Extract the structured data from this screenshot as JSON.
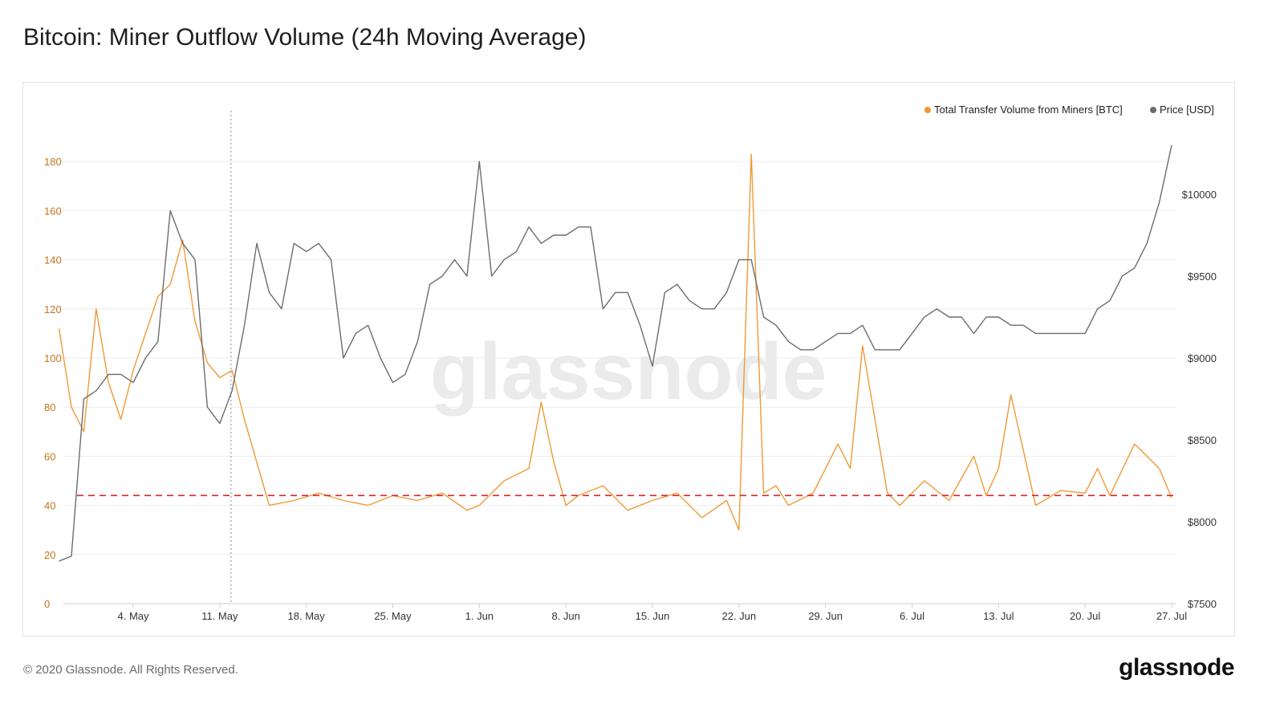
{
  "title": "Bitcoin: Miner Outflow Volume (24h Moving Average)",
  "footer": {
    "copyright": "© 2020 Glassnode. All Rights Reserved.",
    "brand": "glassnode"
  },
  "watermark": "glassnode",
  "colors": {
    "volume": "#f09a37",
    "price": "#6d6d6d",
    "threshold": "#d62626",
    "left_axis": "#c4741a",
    "right_axis": "#333333",
    "grid": "#ececec"
  },
  "chart_data": {
    "type": "line",
    "title": "Bitcoin: Miner Outflow Volume (24h Moving Average)",
    "legend": {
      "placement": "top-right",
      "entries": [
        "Total Transfer Volume from Miners [BTC]",
        "Price [USD]"
      ]
    },
    "x_ticks": [
      "4. May",
      "11. May",
      "18. May",
      "25. May",
      "1. Jun",
      "8. Jun",
      "15. Jun",
      "22. Jun",
      "29. Jun",
      "6. Jul",
      "13. Jul",
      "20. Jul",
      "27. Jul"
    ],
    "y_left": {
      "ticks": [
        "0",
        "20",
        "40",
        "60",
        "80",
        "100",
        "120",
        "140",
        "160",
        "180"
      ],
      "ylim": [
        0,
        200
      ]
    },
    "y_right": {
      "ticks": [
        "$7500",
        "$8000",
        "$8500",
        "$9000",
        "$9500",
        "$10000"
      ],
      "ylim": [
        7500,
        10500
      ]
    },
    "grid": true,
    "threshold_line": {
      "axis": "left",
      "value": 44,
      "style": "dashed"
    },
    "marker_line": {
      "x": "11. May",
      "style": "dotted"
    },
    "series": [
      {
        "name": "Total Transfer Volume from Miners [BTC]",
        "axis": "left",
        "x": [
          "2020-04-28",
          "2020-04-29",
          "2020-04-30",
          "2020-05-01",
          "2020-05-02",
          "2020-05-03",
          "2020-05-04",
          "2020-05-05",
          "2020-05-06",
          "2020-05-07",
          "2020-05-08",
          "2020-05-09",
          "2020-05-10",
          "2020-05-11",
          "2020-05-12",
          "2020-05-13",
          "2020-05-15",
          "2020-05-17",
          "2020-05-19",
          "2020-05-21",
          "2020-05-23",
          "2020-05-25",
          "2020-05-27",
          "2020-05-29",
          "2020-05-31",
          "2020-06-01",
          "2020-06-03",
          "2020-06-05",
          "2020-06-06",
          "2020-06-07",
          "2020-06-08",
          "2020-06-09",
          "2020-06-11",
          "2020-06-13",
          "2020-06-15",
          "2020-06-17",
          "2020-06-19",
          "2020-06-21",
          "2020-06-22",
          "2020-06-23",
          "2020-06-24",
          "2020-06-25",
          "2020-06-26",
          "2020-06-28",
          "2020-06-30",
          "2020-07-01",
          "2020-07-02",
          "2020-07-03",
          "2020-07-04",
          "2020-07-05",
          "2020-07-07",
          "2020-07-09",
          "2020-07-11",
          "2020-07-12",
          "2020-07-13",
          "2020-07-14",
          "2020-07-16",
          "2020-07-18",
          "2020-07-20",
          "2020-07-21",
          "2020-07-22",
          "2020-07-24",
          "2020-07-26",
          "2020-07-27"
        ],
        "values": [
          112,
          80,
          70,
          120,
          90,
          75,
          95,
          110,
          125,
          130,
          148,
          115,
          98,
          92,
          95,
          75,
          40,
          42,
          45,
          42,
          40,
          44,
          42,
          45,
          38,
          40,
          50,
          55,
          82,
          58,
          40,
          44,
          48,
          38,
          42,
          45,
          35,
          42,
          30,
          183,
          45,
          48,
          40,
          45,
          65,
          55,
          105,
          75,
          45,
          40,
          50,
          42,
          60,
          44,
          55,
          85,
          40,
          46,
          45,
          55,
          44,
          65,
          55,
          43
        ]
      },
      {
        "name": "Price [USD]",
        "axis": "right",
        "x": [
          "2020-04-28",
          "2020-04-29",
          "2020-04-30",
          "2020-05-01",
          "2020-05-02",
          "2020-05-03",
          "2020-05-04",
          "2020-05-05",
          "2020-05-06",
          "2020-05-07",
          "2020-05-08",
          "2020-05-09",
          "2020-05-10",
          "2020-05-11",
          "2020-05-12",
          "2020-05-13",
          "2020-05-14",
          "2020-05-15",
          "2020-05-16",
          "2020-05-17",
          "2020-05-18",
          "2020-05-19",
          "2020-05-20",
          "2020-05-21",
          "2020-05-22",
          "2020-05-23",
          "2020-05-24",
          "2020-05-25",
          "2020-05-26",
          "2020-05-27",
          "2020-05-28",
          "2020-05-29",
          "2020-05-30",
          "2020-05-31",
          "2020-06-01",
          "2020-06-02",
          "2020-06-03",
          "2020-06-04",
          "2020-06-05",
          "2020-06-06",
          "2020-06-07",
          "2020-06-08",
          "2020-06-09",
          "2020-06-10",
          "2020-06-11",
          "2020-06-12",
          "2020-06-13",
          "2020-06-14",
          "2020-06-15",
          "2020-06-16",
          "2020-06-17",
          "2020-06-18",
          "2020-06-19",
          "2020-06-20",
          "2020-06-21",
          "2020-06-22",
          "2020-06-23",
          "2020-06-24",
          "2020-06-25",
          "2020-06-26",
          "2020-06-27",
          "2020-06-28",
          "2020-06-29",
          "2020-06-30",
          "2020-07-01",
          "2020-07-02",
          "2020-07-03",
          "2020-07-04",
          "2020-07-05",
          "2020-07-06",
          "2020-07-07",
          "2020-07-08",
          "2020-07-09",
          "2020-07-10",
          "2020-07-11",
          "2020-07-12",
          "2020-07-13",
          "2020-07-14",
          "2020-07-15",
          "2020-07-16",
          "2020-07-17",
          "2020-07-18",
          "2020-07-19",
          "2020-07-20",
          "2020-07-21",
          "2020-07-22",
          "2020-07-23",
          "2020-07-24",
          "2020-07-25",
          "2020-07-26",
          "2020-07-27"
        ],
        "values": [
          7760,
          7790,
          8750,
          8800,
          8900,
          8900,
          8850,
          9000,
          9100,
          9900,
          9700,
          9600,
          8700,
          8600,
          8800,
          9200,
          9700,
          9400,
          9300,
          9700,
          9650,
          9700,
          9600,
          9000,
          9150,
          9200,
          9000,
          8850,
          8900,
          9100,
          9450,
          9500,
          9600,
          9500,
          10200,
          9500,
          9600,
          9650,
          9800,
          9700,
          9750,
          9750,
          9800,
          9800,
          9300,
          9400,
          9400,
          9200,
          8950,
          9400,
          9450,
          9350,
          9300,
          9300,
          9400,
          9600,
          9600,
          9250,
          9200,
          9100,
          9050,
          9050,
          9100,
          9150,
          9150,
          9200,
          9050,
          9050,
          9050,
          9150,
          9250,
          9300,
          9250,
          9250,
          9150,
          9250,
          9250,
          9200,
          9200,
          9150,
          9150,
          9150,
          9150,
          9150,
          9300,
          9350,
          9500,
          9550,
          9700,
          9950,
          10300
        ]
      }
    ]
  }
}
